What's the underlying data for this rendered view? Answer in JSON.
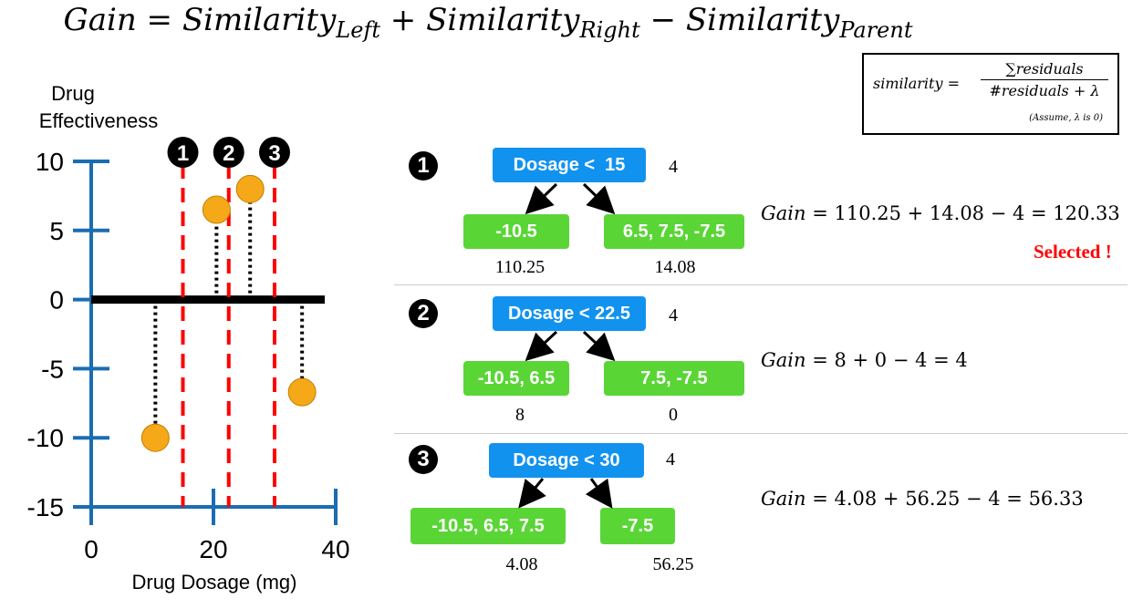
{
  "title": {
    "gain": "Gain",
    "eq": "=",
    "sim": "Similarity",
    "plus": "+",
    "minus": "−",
    "left_sub": "Left",
    "right_sub": "Right",
    "parent_sub": "Parent"
  },
  "similarity_box": {
    "lhs": "similarity =",
    "numerator": "∑residuals",
    "denominator": "#residuals + λ",
    "note": "(Assume, λ is 0)"
  },
  "chart_data": {
    "type": "scatter",
    "xlabel": "Drug Dosage (mg)",
    "ylabel_line1": "Drug",
    "ylabel_line2": "Effectiveness",
    "xlim": [
      0,
      40
    ],
    "ylim": [
      -15,
      10
    ],
    "x_ticks": [
      0,
      20,
      40
    ],
    "x_tick_labels": [
      "0",
      "20",
      "40"
    ],
    "y_ticks": [
      10,
      5,
      0,
      -5,
      -10,
      -15
    ],
    "y_tick_labels": [
      "10",
      "5",
      "0",
      "-5",
      "-10",
      "-15"
    ],
    "points": [
      {
        "x": 10.5,
        "y": -10.0
      },
      {
        "x": 20.5,
        "y": 6.5
      },
      {
        "x": 26.0,
        "y": 8.0
      },
      {
        "x": 34.5,
        "y": -6.7
      }
    ],
    "baseline": 0,
    "split_lines": [
      15,
      22.5,
      30
    ],
    "split_labels": [
      "1",
      "2",
      "3"
    ],
    "colors": {
      "axis": "#1a6db3",
      "point": "#f5a918",
      "split": "#ff0000"
    }
  },
  "splits": [
    {
      "badge": "1",
      "root": "Dosage <  15",
      "root_weight": "4",
      "left": "-10.5",
      "right": "6.5, 7.5, -7.5",
      "left_sim": "110.25",
      "right_sim": "14.08",
      "gain_label": "Gain",
      "gain_expr": " = 110.25 + 14.08 − 4 = 120.33",
      "selected": "Selected !"
    },
    {
      "badge": "2",
      "root": "Dosage < 22.5",
      "root_weight": "4",
      "left": "-10.5, 6.5",
      "right": "7.5, -7.5",
      "left_sim": "8",
      "right_sim": "0",
      "gain_label": "Gain",
      "gain_expr": " = 8 + 0 − 4 = 4"
    },
    {
      "badge": "3",
      "root": "Dosage < 30",
      "root_weight": "4",
      "left": "-10.5, 6.5, 7.5",
      "right": "-7.5",
      "left_sim": "4.08",
      "right_sim": "56.25",
      "gain_label": "Gain",
      "gain_expr": " = 4.08 + 56.25 − 4 = 56.33"
    }
  ]
}
